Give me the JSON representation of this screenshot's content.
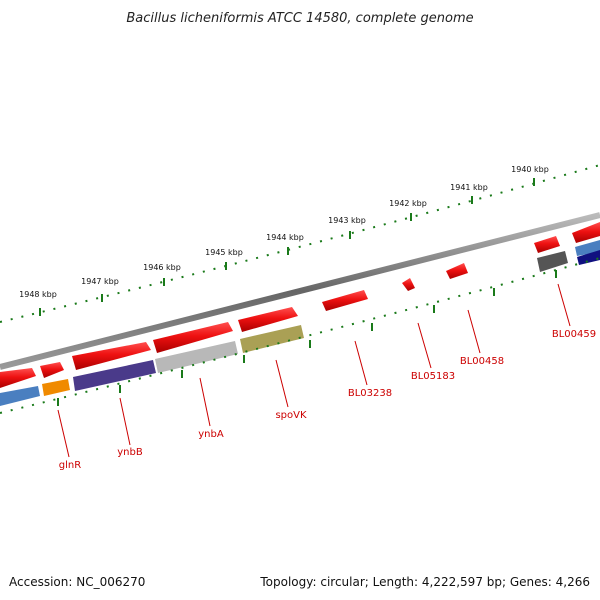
{
  "title": "Bacillus licheniformis ATCC 14580, complete genome",
  "footer": {
    "accession": "Accession: NC_006270",
    "summary": "Topology: circular; Length: 4,222,597 bp; Genes: 4,266"
  },
  "kbp_ticks": [
    "1948 kbp",
    "1947 kbp",
    "1946 kbp",
    "1945 kbp",
    "1944 kbp",
    "1943 kbp",
    "1942 kbp",
    "1941 kbp",
    "1940 kbp"
  ],
  "gene_labels": [
    "glnR",
    "ynbB",
    "ynbA",
    "spoVK",
    "BL03238",
    "BL05183",
    "BL00458",
    "BL00459"
  ],
  "colors": {
    "forward_gene": "#ee1111",
    "backbone": "#777777",
    "tick": "#1a7a1a",
    "label": "#cc0000",
    "cds_blue": "#4a7fc0",
    "cds_orange": "#f08a00",
    "cds_purple": "#4a3a8a",
    "cds_gray": "#b8b8b8",
    "cds_olive": "#aaa055",
    "cds_darkgray": "#555555",
    "cds_navy": "#101080"
  }
}
